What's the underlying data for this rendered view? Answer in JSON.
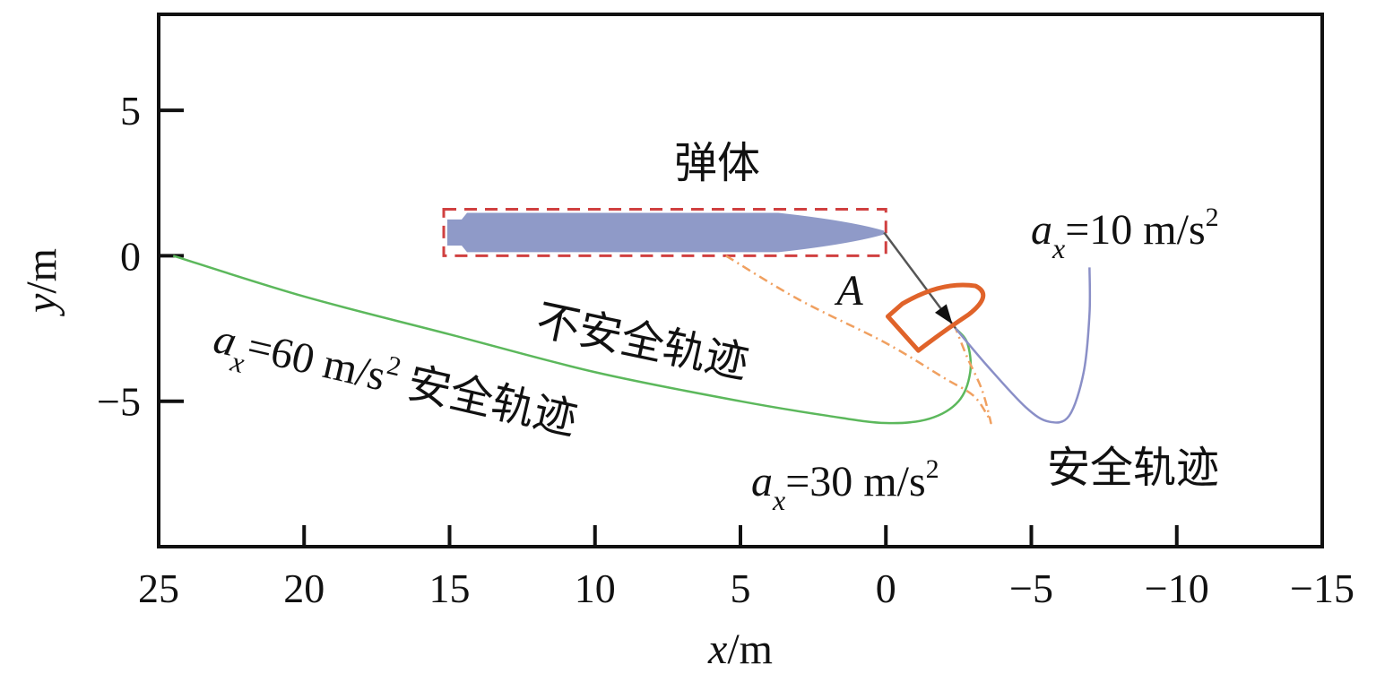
{
  "chart_data": {
    "type": "line",
    "xlabel": {
      "var": "x",
      "unit": "/m"
    },
    "ylabel": {
      "var": "y",
      "unit": "/m"
    },
    "xlim": [
      25,
      -15
    ],
    "ylim": [
      -10,
      8.3
    ],
    "x_reversed": true,
    "xticks": [
      25,
      20,
      15,
      10,
      5,
      0,
      -5,
      -10,
      -15
    ],
    "xtick_labels": [
      "25",
      "20",
      "15",
      "10",
      "5",
      "0",
      "−5",
      "−10",
      "−15"
    ],
    "yticks": [
      5,
      0,
      -5
    ],
    "ytick_labels": [
      "5",
      "0",
      "−5"
    ],
    "grid": false,
    "series": [
      {
        "id": "a60",
        "color": "#5cb85c",
        "style": "solid",
        "points": [
          [
            24.5,
            0
          ],
          [
            20,
            -1.4
          ],
          [
            15,
            -2.7
          ],
          [
            10,
            -4.0
          ],
          [
            5,
            -5.0
          ],
          [
            2,
            -5.5
          ],
          [
            0,
            -5.75
          ],
          [
            -1.5,
            -5.6
          ],
          [
            -2.5,
            -5.0
          ],
          [
            -2.9,
            -4.0
          ],
          [
            -2.8,
            -3.0
          ],
          [
            -2.4,
            -2.5
          ]
        ]
      },
      {
        "id": "a30",
        "color": "#f0a060",
        "style": "dashdot",
        "points": [
          [
            5.5,
            0
          ],
          [
            3,
            -1.5
          ],
          [
            0,
            -3.0
          ],
          [
            -2,
            -4.2
          ],
          [
            -3.0,
            -4.8
          ],
          [
            -3.5,
            -5.5
          ],
          [
            -3.6,
            -5.7
          ],
          [
            -3.3,
            -4.6
          ],
          [
            -2.8,
            -3.5
          ],
          [
            -2.4,
            -2.5
          ]
        ]
      },
      {
        "id": "a10",
        "color": "#8a8fc7",
        "style": "solid",
        "points": [
          [
            -2.4,
            -2.5
          ],
          [
            -3.5,
            -3.8
          ],
          [
            -4.8,
            -5.2
          ],
          [
            -5.6,
            -5.7
          ],
          [
            -6.3,
            -5.5
          ],
          [
            -6.8,
            -4.0
          ],
          [
            -7.0,
            -2.0
          ],
          [
            -7.0,
            -0.4
          ]
        ]
      }
    ],
    "annotations": {
      "body_label": "弹体",
      "point_label": "A",
      "unsafe_label": "不安全轨迹",
      "a10": {
        "var": "a",
        "sub": "x",
        "eq": "=10 m/s",
        "sup": "2"
      },
      "a10_note": "安全轨迹",
      "a60": {
        "var": "a",
        "sub": "x",
        "eq": "=60 m/s",
        "sup": "2",
        "note": " 安全轨迹"
      },
      "a30": {
        "var": "a",
        "sub": "x",
        "eq": "=30 m/s",
        "sup": "2"
      }
    },
    "body": {
      "color": "#8f9ac8",
      "box_color": "#d04040",
      "x_tail": 15.2,
      "x_nose": 0,
      "y_top": 1.6,
      "y_bottom": 0
    },
    "parachute": {
      "color": "#e0632a",
      "line_color": "#555555"
    }
  }
}
